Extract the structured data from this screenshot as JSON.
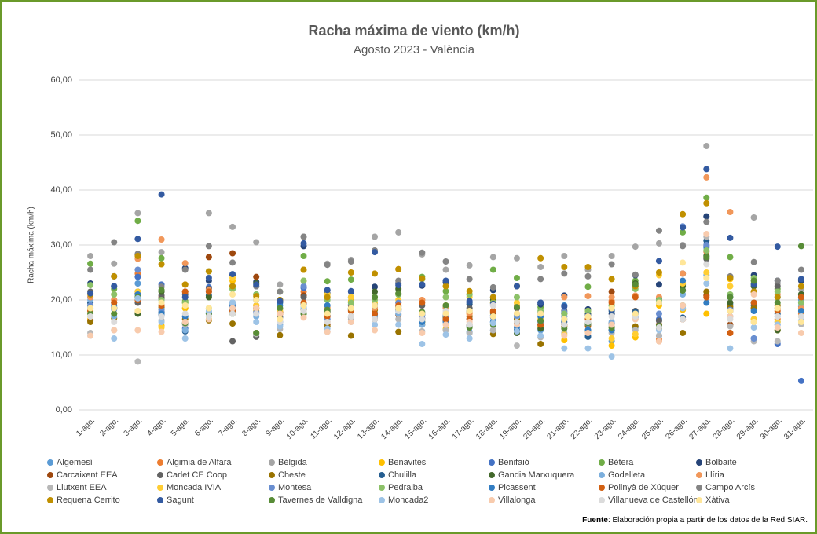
{
  "chart_data": {
    "type": "scatter",
    "title": "Racha máxima de viento (km/h)",
    "subtitle": "Agosto 2023 - València",
    "y_label": "Racha máxima (km/h)",
    "source_label": "Fuente",
    "source_text": ": Elaboración propia a partir de los datos de la Red SIAR.",
    "categories": [
      "1-ago.",
      "2-ago.",
      "3-ago.",
      "4-ago.",
      "5-ago.",
      "6-ago.",
      "7-ago.",
      "8-ago.",
      "9-ago.",
      "10-ago.",
      "11-ago.",
      "12-ago.",
      "13-ago.",
      "14-ago.",
      "15-ago.",
      "16-ago.",
      "17-ago.",
      "18-ago.",
      "19-ago.",
      "20-ago.",
      "21-ago.",
      "22-ago.",
      "23-ago.",
      "24-ago.",
      "25-ago.",
      "26-ago.",
      "27-ago.",
      "28-ago.",
      "29-ago.",
      "30-ago.",
      "31-ago."
    ],
    "ylim": [
      0,
      60
    ],
    "yticks": [
      {
        "value": 0,
        "label": "0,00"
      },
      {
        "value": 10,
        "label": "10,00"
      },
      {
        "value": 20,
        "label": "20,00"
      },
      {
        "value": 30,
        "label": "30,00"
      },
      {
        "value": 40,
        "label": "40,00"
      },
      {
        "value": 50,
        "label": "50,00"
      },
      {
        "value": 60,
        "label": "60,00"
      }
    ],
    "grid": true,
    "legend": "bottom",
    "series": [
      {
        "name": "Algemesí",
        "color": "#5b9bd5",
        "values": [
          20.5,
          17.5,
          23,
          18.3,
          17,
          17.8,
          18.8,
          17.5,
          15.5,
          19,
          17,
          16.8,
          17.7,
          18.2,
          17.2,
          16.3,
          14.2,
          16,
          15.8,
          14.5,
          15.5,
          13.5,
          12.5,
          15,
          13.5,
          18.5,
          29.5,
          19.2,
          18.3,
          17,
          20
        ]
      },
      {
        "name": "Algimia de Alfara",
        "color": "#ed7d31",
        "values": [
          18,
          20,
          24.8,
          20.5,
          22.8,
          22,
          18,
          19,
          17.8,
          21.5,
          16,
          18.3,
          17,
          19.5,
          20,
          17.5,
          17.8,
          18,
          17.5,
          16.3,
          15.5,
          15.2,
          19.8,
          17.5,
          12.8,
          24.8,
          28.8,
          14,
          18.5,
          16.5,
          17.5
        ]
      },
      {
        "name": "Bélgida",
        "color": "#a5a5a5",
        "values": [
          28,
          26.6,
          35.8,
          28.7,
          18.5,
          35.8,
          33.3,
          30.5,
          22.8,
          31.5,
          26.6,
          27.3,
          31.5,
          32.3,
          28.3,
          25.5,
          26.3,
          27.8,
          27.6,
          26,
          28,
          25.5,
          28,
          29.7,
          30.3,
          30,
          48,
          24,
          35,
          23,
          21.9
        ]
      },
      {
        "name": "Benavites",
        "color": "#ffc000",
        "values": [
          16.5,
          17.5,
          21.5,
          15.3,
          18.5,
          16.5,
          23.5,
          18,
          17.5,
          23.5,
          18.5,
          19.8,
          18.2,
          18.2,
          16,
          14.7,
          17.5,
          17.5,
          18.5,
          15.2,
          12.7,
          14.2,
          11.7,
          13.2,
          19,
          18.2,
          17.5,
          23.8,
          16.5,
          14.5,
          18
        ]
      },
      {
        "name": "Benifaió",
        "color": "#4472c4",
        "values": [
          19.5,
          18.7,
          24.2,
          22.8,
          14.8,
          22.3,
          18.2,
          18.5,
          16.8,
          22.2,
          17.2,
          19,
          19.2,
          18.3,
          16.7,
          17.5,
          15.3,
          17.2,
          16.8,
          15.5,
          16.5,
          14.5,
          14.5,
          16.8,
          16.5,
          22.8,
          29.8,
          18.5,
          13,
          12,
          5.3
        ]
      },
      {
        "name": "Bétera",
        "color": "#70ad47",
        "values": [
          26.6,
          22,
          34.4,
          27.6,
          19.8,
          25.2,
          22,
          21,
          18.4,
          28,
          23.4,
          23.7,
          20.5,
          21,
          24.2,
          21.6,
          21,
          25.5,
          24,
          18.7,
          17.6,
          22.4,
          19,
          23.5,
          20,
          32.3,
          38.6,
          27.8,
          23,
          22,
          21
        ]
      },
      {
        "name": "Bolbaite",
        "color": "#264478",
        "values": [
          23,
          24.3,
          28.2,
          20.3,
          25.8,
          23.5,
          24.5,
          23.3,
          19.7,
          29.8,
          21.2,
          21.5,
          22.4,
          23,
          22.6,
          23.2,
          19.2,
          21.8,
          22.5,
          19.2,
          20.8,
          18.3,
          17.5,
          24.5,
          22.8,
          24.8,
          35.2,
          24.2,
          24.5,
          23.5,
          23.5
        ]
      },
      {
        "name": "Carcaixent EEA",
        "color": "#9e480e",
        "values": [
          16.2,
          18.5,
          21.2,
          17.2,
          21.5,
          27.8,
          28.5,
          24.2,
          17.8,
          20.8,
          15.5,
          19,
          16.5,
          17.3,
          16.5,
          16.2,
          15.5,
          17.8,
          15.8,
          15.5,
          17,
          16.5,
          21.5,
          22.5,
          15.5,
          16.5,
          20.8,
          15.5,
          21.5,
          18.5,
          20.5
        ]
      },
      {
        "name": "Carlet CE Coop",
        "color": "#636363",
        "values": [
          21.5,
          19.5,
          19.5,
          20.8,
          21,
          22,
          12.5,
          13.3,
          17,
          20.5,
          17.8,
          18,
          16.5,
          18.8,
          19,
          18.7,
          18.5,
          20.5,
          18.5,
          17.7,
          18,
          15.5,
          15.8,
          18,
          16.2,
          21.8,
          27.5,
          18,
          19,
          22.5,
          21
        ]
      },
      {
        "name": "Cheste",
        "color": "#997300",
        "values": [
          16,
          16.7,
          17.8,
          18.7,
          16.5,
          16.3,
          15.7,
          14,
          13.6,
          18.2,
          15.2,
          13.5,
          18.2,
          14.2,
          15.5,
          16.8,
          17,
          13.8,
          16.5,
          12,
          15.2,
          15.5,
          15,
          15.2,
          14.8,
          14,
          21.5,
          18.8,
          18.5,
          19,
          18.8
        ]
      },
      {
        "name": "Chulilla",
        "color": "#255e91",
        "values": [
          19.5,
          22.5,
          21.5,
          17.8,
          14.3,
          20.8,
          19.5,
          22.5,
          19.5,
          19.2,
          21.8,
          20.5,
          17.3,
          18.5,
          17.5,
          16.5,
          19.5,
          14.5,
          14.5,
          19.5,
          16,
          13.3,
          18,
          17.8,
          20.3,
          16.8,
          30.8,
          24.2,
          19.5,
          17.5,
          23.8
        ]
      },
      {
        "name": "Gandia Marxuquera",
        "color": "#43682b",
        "values": [
          19,
          18.5,
          17.5,
          21.5,
          19.5,
          20.5,
          22.5,
          23,
          20,
          17.5,
          18,
          18.2,
          21.5,
          22,
          16,
          17,
          18,
          20,
          14,
          14.8,
          17.5,
          17.5,
          14.5,
          23,
          15,
          22.5,
          28,
          19.5,
          22.5,
          14.5,
          21
        ]
      },
      {
        "name": "Godelleta",
        "color": "#7cafdd",
        "values": [
          20,
          17,
          20.5,
          17.2,
          14.5,
          17.5,
          19.5,
          17,
          16,
          18.5,
          16.5,
          17,
          17,
          17.5,
          15.5,
          17.2,
          14,
          16,
          17,
          16,
          17,
          14.5,
          16,
          17,
          15,
          21,
          24.5,
          17,
          16,
          16,
          19
        ]
      },
      {
        "name": "Llíria",
        "color": "#f1975a",
        "values": [
          20.5,
          20,
          27.5,
          31,
          26.7,
          21.8,
          22.5,
          19,
          17.5,
          25.5,
          18.7,
          19.5,
          18.5,
          25.6,
          20,
          18.5,
          17.5,
          19.5,
          19,
          17.5,
          20.5,
          20.7,
          20.5,
          20.8,
          20.5,
          24.8,
          42.3,
          36,
          21.5,
          21,
          18.5
        ]
      },
      {
        "name": "Llutxent EEA",
        "color": "#b7b7b7",
        "values": [
          14,
          14.5,
          8.8,
          16.3,
          15.5,
          17.5,
          17.5,
          13.8,
          14.7,
          17.7,
          14.2,
          16.5,
          15.5,
          16.5,
          14.3,
          14.5,
          14,
          14.5,
          11.7,
          13.2,
          14,
          15.8,
          14,
          14.5,
          13.5,
          19,
          31.5,
          15.2,
          12.5,
          12.5,
          15.6
        ]
      },
      {
        "name": "Moncada IVIA",
        "color": "#ffcd33",
        "values": [
          17,
          21,
          21.5,
          15,
          19.5,
          17,
          24,
          19,
          18,
          25.5,
          21,
          20.5,
          19.5,
          20,
          16,
          19,
          20.5,
          19.5,
          19.5,
          16.5,
          13.7,
          18,
          13,
          13.8,
          24.5,
          23,
          25,
          22.5,
          16.5,
          16,
          17
        ]
      },
      {
        "name": "Montesa",
        "color": "#698ed0",
        "values": [
          19,
          18.3,
          25.5,
          18.2,
          15.8,
          21.5,
          19,
          17.8,
          16,
          22.5,
          16.5,
          19.2,
          19,
          19.5,
          17.3,
          17.2,
          16.5,
          16.8,
          17.2,
          16,
          17.8,
          15.7,
          15.5,
          17,
          17.5,
          33.4,
          30,
          18.2,
          13,
          15.5,
          19.5
        ]
      },
      {
        "name": "Pedralba",
        "color": "#8cc168",
        "values": [
          22.7,
          21,
          20.5,
          20,
          19.5,
          18.5,
          22,
          21,
          21.5,
          23.5,
          20,
          19.5,
          20,
          21,
          23.8,
          20.5,
          21,
          19.5,
          20.5,
          18,
          17.5,
          18,
          19,
          22,
          20,
          19,
          29,
          21,
          24,
          21.5,
          19.5
        ]
      },
      {
        "name": "Picassent",
        "color": "#327dc2",
        "values": [
          18.5,
          19,
          21,
          17.5,
          17,
          17.5,
          19,
          20,
          19,
          19.5,
          19,
          18.5,
          19,
          18,
          16,
          16,
          16.5,
          16,
          15,
          17,
          19,
          14.5,
          14.5,
          17.5,
          19.5,
          23.5,
          19.5,
          20.5,
          18,
          20.5,
          18
        ]
      },
      {
        "name": "Polinyà de Xúquer",
        "color": "#d26012",
        "values": [
          18,
          19.5,
          20,
          19,
          21.5,
          21.5,
          18,
          18.5,
          17.5,
          19.5,
          17,
          18,
          17.5,
          19,
          19.5,
          16.5,
          16.5,
          18,
          16,
          15.5,
          15.5,
          16.5,
          19.5,
          20.5,
          12.5,
          16.5,
          20.5,
          14,
          19.5,
          18,
          20.5
        ]
      },
      {
        "name": "Campo Arcís",
        "color": "#848484",
        "values": [
          25.5,
          30.5,
          28.4,
          22.4,
          25.5,
          29.8,
          26.8,
          22.5,
          21.5,
          31.5,
          26.4,
          27,
          29,
          23.5,
          28.6,
          27,
          23.8,
          22.3,
          22.5,
          23.8,
          24.8,
          24.3,
          26.5,
          24.6,
          32.6,
          29.8,
          34.2,
          24.3,
          26.9,
          23.5,
          25.5
        ]
      },
      {
        "name": "Requena Cerrito",
        "color": "#c09000",
        "values": [
          21,
          24.3,
          28,
          26.5,
          22.8,
          25.2,
          22.5,
          20.7,
          20,
          25.5,
          20.5,
          25,
          24.8,
          25.6,
          23.9,
          22.5,
          21.6,
          20.5,
          22.5,
          27.6,
          26,
          26,
          23.8,
          22.5,
          25,
          35.6,
          37.6,
          24,
          21.5,
          20.5,
          22.5
        ]
      },
      {
        "name": "Sagunt",
        "color": "#335aa1",
        "values": [
          21.2,
          22.5,
          31.1,
          39.2,
          20.5,
          24,
          24.7,
          22.8,
          19.8,
          30.3,
          21.8,
          21.6,
          28.7,
          22.7,
          22.8,
          23.5,
          19.8,
          19.3,
          22.5,
          19.5,
          18.8,
          17.2,
          18.3,
          17.5,
          27.1,
          33.2,
          43.8,
          31.3,
          22.8,
          29.7,
          23.8
        ]
      },
      {
        "name": "Tavernes de Valldigna",
        "color": "#588c37",
        "values": [
          17.5,
          17.5,
          20.5,
          21.8,
          15.8,
          17.5,
          17.5,
          14,
          18.5,
          17.5,
          18.2,
          18.5,
          20.5,
          21.2,
          17.8,
          19,
          15,
          15.5,
          18.7,
          16.2,
          14.8,
          15.8,
          15,
          22.8,
          15.3,
          21.7,
          27.8,
          20.5,
          23.5,
          19.5,
          29.8
        ]
      },
      {
        "name": "Moncada2",
        "color": "#9dc3e6",
        "values": [
          13.5,
          13,
          20.3,
          16,
          13,
          18,
          19.5,
          16,
          15.2,
          18.8,
          14.8,
          16,
          15.5,
          15.5,
          12,
          13.7,
          13,
          15.8,
          14.3,
          13.5,
          11.2,
          11.2,
          9.7,
          16.5,
          14.5,
          18.5,
          23,
          11.2,
          15,
          15.5,
          16.2
        ]
      },
      {
        "name": "Villalonga",
        "color": "#f8cbad",
        "values": [
          13.5,
          14.5,
          14.5,
          14.2,
          16,
          16.5,
          18.5,
          18.5,
          17.5,
          16.8,
          14.2,
          16,
          14.5,
          18.5,
          14,
          15.5,
          16,
          19,
          15.5,
          17.5,
          13.5,
          14,
          15.5,
          16.5,
          12.5,
          19,
          32,
          17,
          21,
          15,
          14
        ]
      },
      {
        "name": "Villanueva de Castellón",
        "color": "#dbdbdb",
        "values": [
          17,
          16,
          18,
          17,
          17.5,
          17,
          17.5,
          17.5,
          16,
          18,
          16,
          17,
          16.5,
          18,
          16.5,
          18,
          15.5,
          19,
          16,
          17.5,
          15.5,
          16,
          17,
          17,
          15,
          16.5,
          26.5,
          16.5,
          16,
          17,
          17
        ]
      },
      {
        "name": "Xàtiva",
        "color": "#ffe699",
        "values": [
          18.5,
          18.5,
          18,
          19.5,
          19,
          18.5,
          21,
          20,
          16.5,
          19,
          17.5,
          18.5,
          19,
          18.5,
          17.5,
          17.5,
          18,
          17,
          17.5,
          17.5,
          16.5,
          17,
          18.5,
          17.5,
          19.5,
          26.8,
          24,
          18,
          16,
          18.5,
          16
        ]
      }
    ]
  }
}
